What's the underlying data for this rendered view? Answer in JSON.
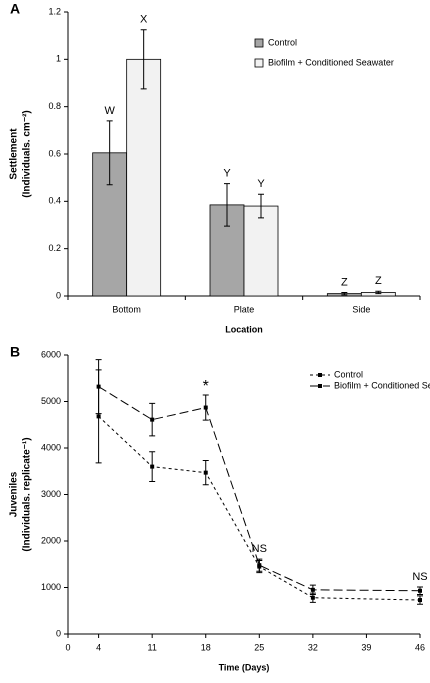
{
  "chart_data": [
    {
      "type": "bar",
      "title": "A",
      "ylabel": [
        "Settlement",
        "(Individuals. cm⁻²)"
      ],
      "xlabel": "Location",
      "categories": [
        "Bottom",
        "Plate",
        "Side"
      ],
      "series": [
        {
          "name": "Control",
          "color": "#a6a6a6",
          "values": [
            0.605,
            0.385,
            0.01
          ],
          "errors": [
            0.135,
            0.09,
            0.005
          ],
          "letters": [
            "W",
            "Y",
            "Z"
          ]
        },
        {
          "name": "Biofilm + Conditioned Seawater",
          "color": "#f2f2f2",
          "values": [
            1.0,
            0.38,
            0.015
          ],
          "errors": [
            0.125,
            0.05,
            0.005
          ],
          "letters": [
            "X",
            "Y",
            "Z"
          ]
        }
      ],
      "ylim": [
        0,
        1.2
      ],
      "yticks": [
        0,
        0.2,
        0.4,
        0.6,
        0.8,
        1,
        1.2
      ]
    },
    {
      "type": "line",
      "title": "B",
      "ylabel": [
        "Juveniles",
        "(Individuals. replicate⁻¹)"
      ],
      "xlabel": "Time (Days)",
      "x": [
        4,
        11,
        18,
        25,
        32,
        46
      ],
      "series": [
        {
          "name": "Control",
          "color": "#000000",
          "values": [
            4680,
            3600,
            3470,
            1450,
            780,
            730
          ],
          "errors": [
            1000,
            320,
            260,
            130,
            100,
            90
          ]
        },
        {
          "name": "Biofilm + Conditioned Seawater",
          "color": "#000000",
          "values": [
            5320,
            4610,
            4870,
            1480,
            950,
            930
          ],
          "errors": [
            580,
            350,
            270,
            130,
            100,
            80
          ]
        }
      ],
      "annotations": [
        {
          "x": 18,
          "text": "*"
        },
        {
          "x": 25,
          "text": "NS"
        },
        {
          "x": 46,
          "text": "NS"
        }
      ],
      "xlim": [
        0,
        46
      ],
      "xticks": [
        0,
        4,
        11,
        18,
        25,
        32,
        39,
        46
      ],
      "ylim": [
        0,
        6000
      ],
      "yticks": [
        0,
        1000,
        2000,
        3000,
        4000,
        5000,
        6000
      ]
    }
  ]
}
